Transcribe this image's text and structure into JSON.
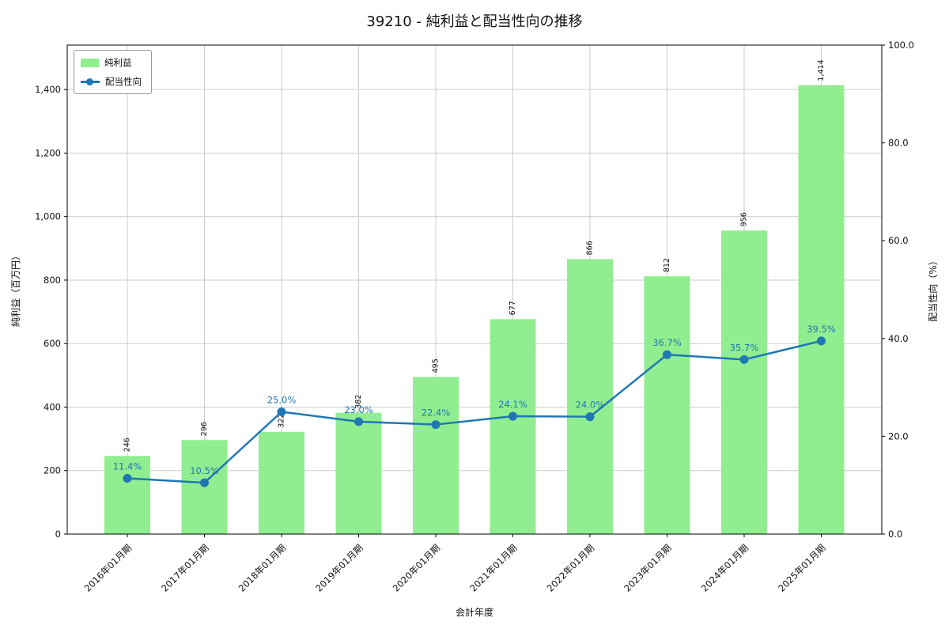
{
  "chart_data": {
    "type": "bar+line",
    "title": "39210 - 純利益と配当性向の推移",
    "xlabel": "会計年度",
    "ylabel_left": "純利益（百万円）",
    "ylabel_right": "配当性向（%）",
    "categories": [
      "2016年01月期",
      "2017年01月期",
      "2018年01月期",
      "2019年01月期",
      "2020年01月期",
      "2021年01月期",
      "2022年01月期",
      "2023年01月期",
      "2024年01月期",
      "2025年01月期"
    ],
    "series": [
      {
        "name": "純利益",
        "type": "bar",
        "axis": "left",
        "color": "#90ee90",
        "values": [
          246,
          296,
          322,
          382,
          495,
          677,
          866,
          812,
          956,
          1414
        ],
        "labels": [
          "246",
          "296",
          "322",
          "382",
          "495",
          "677",
          "866",
          "812",
          "956",
          "1,414"
        ]
      },
      {
        "name": "配当性向",
        "type": "line",
        "axis": "right",
        "color": "#1f77b4",
        "values": [
          11.4,
          10.5,
          25.0,
          23.0,
          22.4,
          24.1,
          24.0,
          36.7,
          35.7,
          39.5
        ],
        "labels": [
          "11.4%",
          "10.5%",
          "25.0%",
          "23.0%",
          "22.4%",
          "24.1%",
          "24.0%",
          "36.7%",
          "35.7%",
          "39.5%"
        ]
      }
    ],
    "left_axis": {
      "min": 0,
      "max": 1540,
      "ticks": [
        0,
        200,
        400,
        600,
        800,
        1000,
        1200,
        1400
      ],
      "tick_labels": [
        "0",
        "200",
        "400",
        "600",
        "800",
        "1,000",
        "1,200",
        "1,400"
      ]
    },
    "right_axis": {
      "min": 0,
      "max": 100,
      "ticks": [
        0,
        20,
        40,
        60,
        80,
        100
      ],
      "tick_labels": [
        "0.0",
        "20.0",
        "40.0",
        "60.0",
        "80.0",
        "100.0"
      ]
    },
    "grid": true,
    "legend_position": "upper-left"
  }
}
